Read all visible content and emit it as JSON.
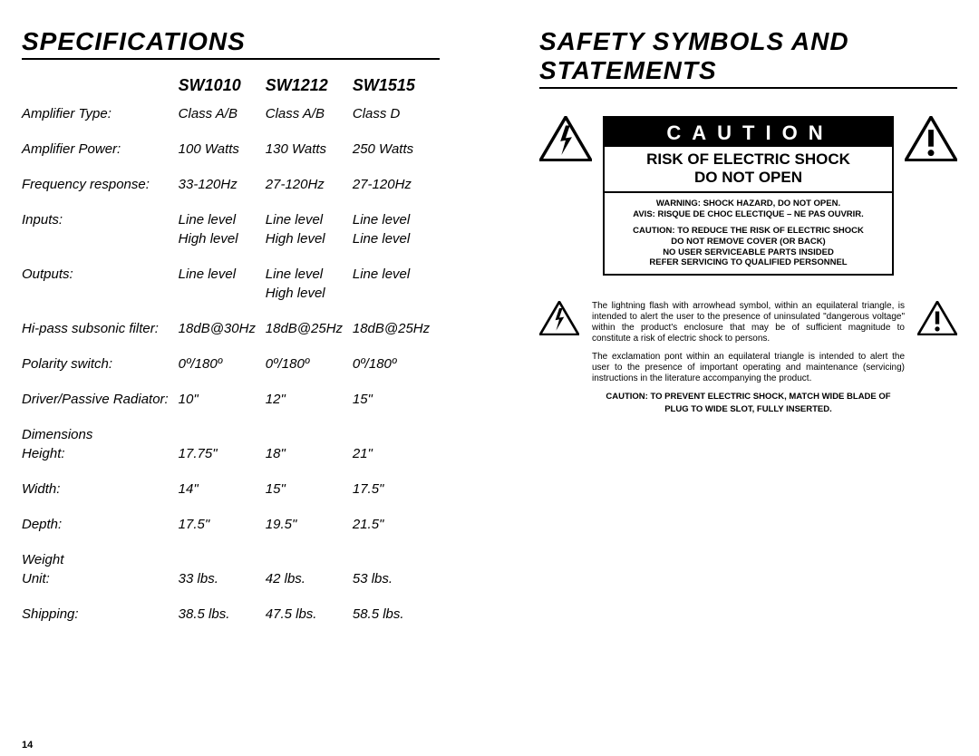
{
  "page_number": "14",
  "left": {
    "heading": "SPECIFICATIONS",
    "models": [
      "SW1010",
      "SW1212",
      "SW1515"
    ],
    "rows": [
      {
        "label": "Amplifier Type:",
        "v": [
          "Class A/B",
          "Class A/B",
          "Class D"
        ]
      },
      {
        "label": "Amplifier Power:",
        "v": [
          "100 Watts",
          "130 Watts",
          "250 Watts"
        ]
      },
      {
        "label": "Frequency response:",
        "v": [
          "33-120Hz",
          "27-120Hz",
          "27-120Hz"
        ]
      },
      {
        "label": "Inputs:",
        "v": [
          "Line level",
          "Line level",
          "Line level"
        ],
        "v2": [
          "High level",
          "High level",
          "Line level"
        ]
      },
      {
        "label": "Outputs:",
        "v": [
          "Line level",
          "Line level",
          "Line level"
        ],
        "v2": [
          "",
          "High level",
          ""
        ]
      },
      {
        "label": "Hi-pass subsonic filter:",
        "v": [
          "18dB@30Hz",
          "18dB@25Hz",
          "18dB@25Hz"
        ]
      },
      {
        "label": "Polarity switch:",
        "v": [
          "0º/180º",
          "0º/180º",
          "0º/180º"
        ]
      },
      {
        "label": "Driver/Passive Radiator:",
        "v": [
          "10\"",
          "12\"",
          "15\""
        ]
      }
    ],
    "dimensions": {
      "label": "Dimensions",
      "items": [
        {
          "label": "Height:",
          "v": [
            "17.75\"",
            "18\"",
            "21\""
          ]
        },
        {
          "label": "Width:",
          "v": [
            "14\"",
            "15\"",
            "17.5\""
          ]
        },
        {
          "label": "Depth:",
          "v": [
            "17.5\"",
            "19.5\"",
            "21.5\""
          ]
        }
      ]
    },
    "weight": {
      "label": "Weight",
      "items": [
        {
          "label": "Unit:",
          "v": [
            "33 lbs.",
            "42 lbs.",
            "53 lbs."
          ]
        },
        {
          "label": "Shipping:",
          "v": [
            "38.5 lbs.",
            "47.5 lbs.",
            "58.5 lbs."
          ]
        }
      ]
    }
  },
  "right": {
    "heading": "SAFETY SYMBOLS AND STATEMENTS",
    "caution": {
      "bar": "CAUTION",
      "risk_line1": "RISK OF ELECTRIC SHOCK",
      "risk_line2": "DO NOT OPEN",
      "warn": [
        "WARNING: SHOCK HAZARD, DO NOT OPEN.",
        "AVIS: RISQUE DE CHOC ELECTIQUE – NE PAS OUVRIR.",
        "",
        "CAUTION: TO REDUCE THE RISK OF ELECTRIC SHOCK",
        "DO NOT REMOVE COVER (OR BACK)",
        "NO USER SERVICEABLE PARTS INSIDED",
        "REFER SERVICING TO QUALIFIED PERSONNEL"
      ]
    },
    "explain": {
      "p1": "The lightning flash with arrowhead symbol, within an equilateral triangle, is intended to alert the user to the presence of uninsulated \"dangerous voltage\" within the product's enclosure that may be of sufficient magnitude to constitute a risk of electric shock to persons.",
      "p2": "The exclamation pont within an equilateral triangle is intended to alert the user to the presence of important operating and maintenance (servicing) instructions in the literature accompanying the product.",
      "bold1": "CAUTION: TO PREVENT ELECTRIC SHOCK, MATCH WIDE BLADE OF",
      "bold2": "PLUG TO WIDE SLOT, FULLY INSERTED."
    }
  },
  "style": {
    "heading_fontsize": 28,
    "body_fontsize": 15,
    "small_fontsize": 10,
    "text_color": "#000000",
    "bg_color": "#ffffff",
    "border_color": "#000000",
    "caution_bar_bg": "#000000",
    "caution_bar_fg": "#ffffff",
    "font_style": "italic",
    "font_family": "Arial"
  }
}
